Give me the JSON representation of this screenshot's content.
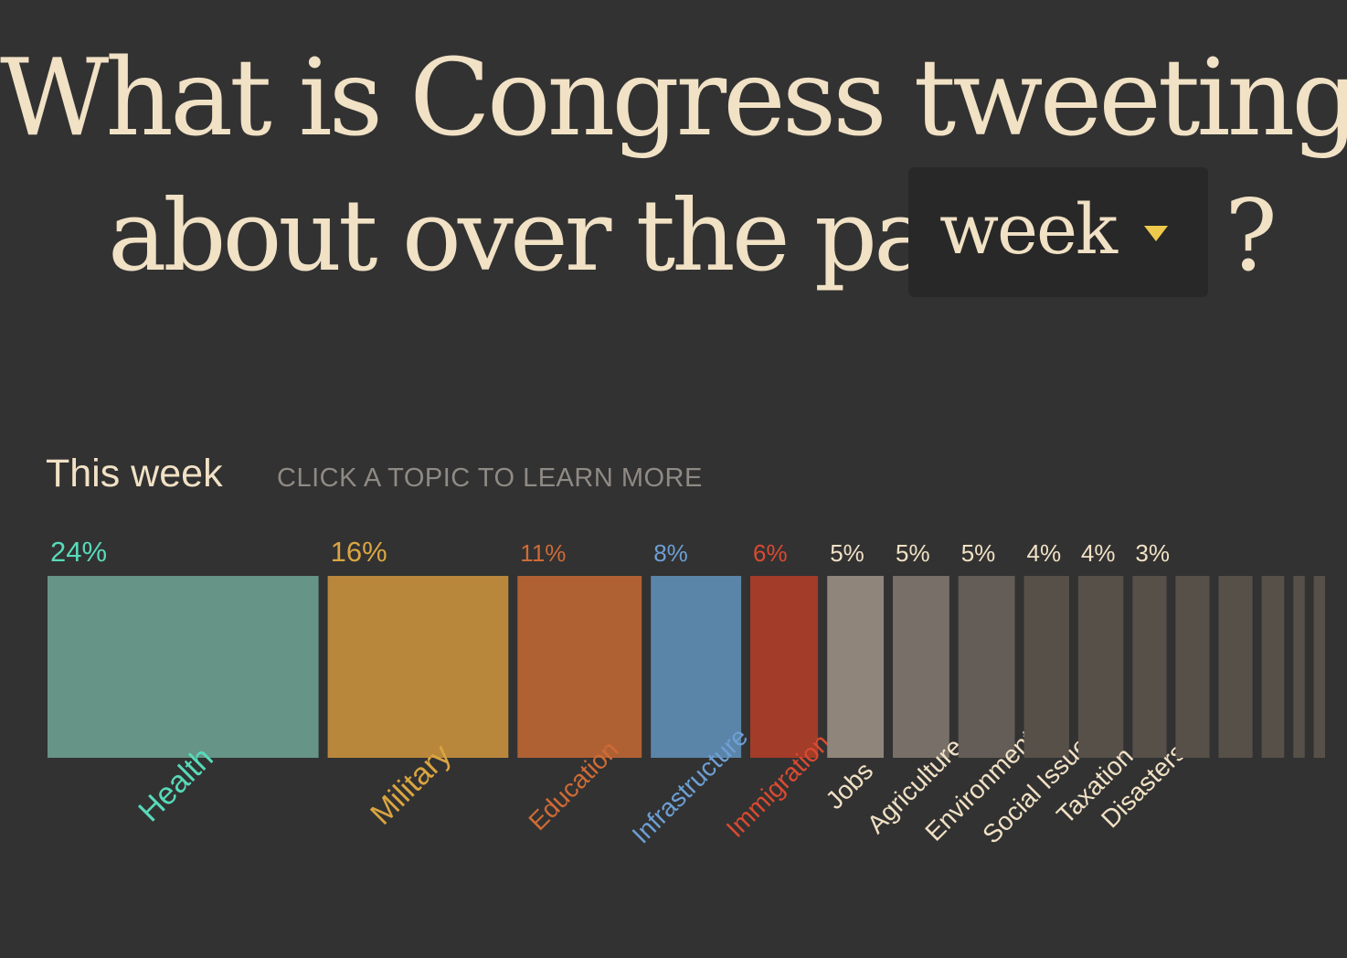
{
  "header": {
    "title_line1": "What is Congress tweeting",
    "title_line2": "about over the past",
    "range_selected": "week",
    "question_mark": "?"
  },
  "subheader": {
    "period_label": "This week",
    "hint": "CLICK A TOPIC TO LEARN MORE"
  },
  "colors": {
    "background": "#323232",
    "title": "#f1e1c5",
    "caret": "#efc94c"
  },
  "chart_data": {
    "type": "bar",
    "values": [
      24,
      16,
      11,
      8,
      6,
      5,
      5,
      5,
      4,
      4,
      3,
      3,
      3,
      2,
      1,
      1
    ],
    "value_labels": [
      "24%",
      "16%",
      "11%",
      "8%",
      "6%",
      "5%",
      "5%",
      "5%",
      "4%",
      "4%",
      "3%",
      "",
      "",
      "",
      "",
      ""
    ],
    "categories": [
      "Health",
      "Military",
      "Education",
      "Infrastructure",
      "Immigration",
      "Jobs",
      "Agriculture",
      "Environment",
      "Social Issues",
      "Taxation",
      "Disasters",
      "",
      "",
      "",
      "",
      ""
    ],
    "bar_colors": [
      "#669486",
      "#b9873c",
      "#b06134",
      "#5b85a8",
      "#a33c29",
      "#8f857a",
      "#786f68",
      "#645d57",
      "#575049",
      "#575049",
      "#575049",
      "#575049",
      "#575049",
      "#575049",
      "#575049",
      "#575049"
    ],
    "label_colors": [
      "#58dab9",
      "#daa541",
      "#cf6b36",
      "#6d9fd4",
      "#da4a31",
      "#f1e1c5",
      "#f1e1c5",
      "#f1e1c5",
      "#f1e1c5",
      "#f1e1c5",
      "#f1e1c5",
      "#f1e1c5",
      "#f1e1c5",
      "#f1e1c5",
      "#f1e1c5",
      "#f1e1c5"
    ]
  }
}
